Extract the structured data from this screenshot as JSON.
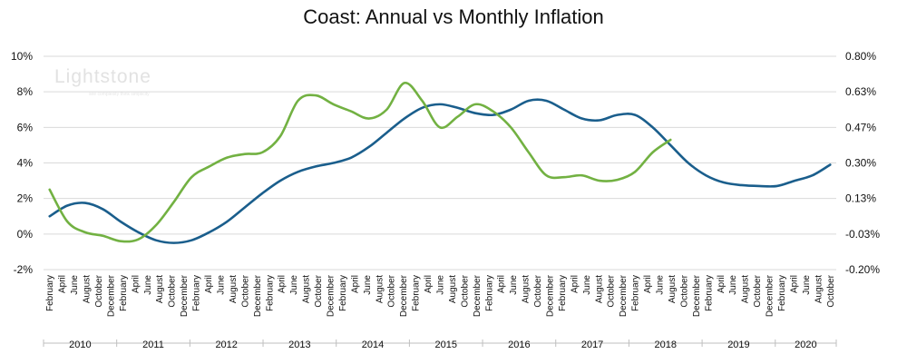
{
  "chart_data": {
    "type": "line",
    "title": "Coast: Annual vs Monthly Inflation",
    "xlabel": "",
    "ylabel": "",
    "y_left": {
      "ticks": [
        "10%",
        "8%",
        "6%",
        "4%",
        "2%",
        "0%",
        "-2%"
      ],
      "ylim": [
        -2,
        10
      ]
    },
    "y_right": {
      "ticks": [
        "0.80%",
        "0.63%",
        "0.47%",
        "0.30%",
        "0.13%",
        "-0.03%",
        "-0.20%"
      ],
      "ylim": [
        -0.2,
        0.8
      ]
    },
    "x_month_labels": [
      "February",
      "April",
      "June",
      "August",
      "October",
      "December",
      "February",
      "April",
      "June",
      "August",
      "October",
      "December",
      "February",
      "April",
      "June",
      "August",
      "October",
      "December",
      "February",
      "April",
      "June",
      "August",
      "October",
      "December",
      "February",
      "April",
      "June",
      "August",
      "October",
      "December",
      "February",
      "April",
      "June",
      "August",
      "October",
      "December",
      "February",
      "April",
      "June",
      "August",
      "October",
      "December",
      "February",
      "April",
      "June",
      "August",
      "October",
      "December",
      "February",
      "April",
      "June",
      "August",
      "October",
      "December",
      "February",
      "April",
      "June",
      "August",
      "October",
      "December",
      "February",
      "April",
      "June",
      "August",
      "October"
    ],
    "years": [
      "2010",
      "2011",
      "2012",
      "2013",
      "2014",
      "2015",
      "2016",
      "2017",
      "2018",
      "2019",
      "2020"
    ],
    "grid": true,
    "legend": "none",
    "series": [
      {
        "axis": "left",
        "color": "#1a5e8c",
        "points": [
          [
            0,
            1.0
          ],
          [
            1,
            1.6
          ],
          [
            2,
            1.75
          ],
          [
            3,
            1.4
          ],
          [
            4,
            0.7
          ],
          [
            5,
            0.1
          ],
          [
            6,
            -0.35
          ],
          [
            7,
            -0.5
          ],
          [
            8,
            -0.35
          ],
          [
            9,
            0.1
          ],
          [
            10,
            0.7
          ],
          [
            11,
            1.5
          ],
          [
            12,
            2.3
          ],
          [
            13,
            3.0
          ],
          [
            14,
            3.5
          ],
          [
            15,
            3.8
          ],
          [
            16,
            4.0
          ],
          [
            17,
            4.3
          ],
          [
            18,
            4.9
          ],
          [
            19,
            5.7
          ],
          [
            20,
            6.5
          ],
          [
            21,
            7.1
          ],
          [
            22,
            7.3
          ],
          [
            23,
            7.1
          ],
          [
            24,
            6.8
          ],
          [
            25,
            6.7
          ],
          [
            26,
            7.0
          ],
          [
            27,
            7.5
          ],
          [
            28,
            7.5
          ],
          [
            29,
            7.0
          ],
          [
            30,
            6.5
          ],
          [
            31,
            6.4
          ],
          [
            32,
            6.7
          ],
          [
            33,
            6.7
          ],
          [
            34,
            6.0
          ],
          [
            35,
            5.0
          ],
          [
            36,
            4.0
          ],
          [
            37,
            3.3
          ],
          [
            38,
            2.9
          ],
          [
            39,
            2.75
          ],
          [
            40,
            2.7
          ],
          [
            41,
            2.7
          ],
          [
            42,
            3.0
          ],
          [
            43,
            3.3
          ],
          [
            44,
            3.9
          ]
        ]
      },
      {
        "axis": "left",
        "color": "#72b142",
        "points": [
          [
            0,
            2.5
          ],
          [
            1,
            0.7
          ],
          [
            2,
            0.1
          ],
          [
            3,
            -0.1
          ],
          [
            4,
            -0.4
          ],
          [
            5,
            -0.3
          ],
          [
            6,
            0.5
          ],
          [
            7,
            1.8
          ],
          [
            8,
            3.2
          ],
          [
            9,
            3.8
          ],
          [
            10,
            4.3
          ],
          [
            11,
            4.5
          ],
          [
            12,
            4.6
          ],
          [
            13,
            5.5
          ],
          [
            14,
            7.5
          ],
          [
            15,
            7.8
          ],
          [
            16,
            7.3
          ],
          [
            17,
            6.9
          ],
          [
            18,
            6.5
          ],
          [
            19,
            7.0
          ],
          [
            20,
            8.5
          ],
          [
            21,
            7.5
          ],
          [
            22,
            6.0
          ],
          [
            23,
            6.6
          ],
          [
            24,
            7.3
          ],
          [
            25,
            6.9
          ],
          [
            26,
            6.0
          ],
          [
            27,
            4.6
          ],
          [
            28,
            3.3
          ],
          [
            29,
            3.2
          ],
          [
            30,
            3.3
          ],
          [
            31,
            3.0
          ],
          [
            32,
            3.05
          ],
          [
            33,
            3.5
          ],
          [
            34,
            4.6
          ],
          [
            35,
            5.3
          ]
        ]
      }
    ]
  },
  "watermark": {
    "logo_text": "Lightstone",
    "tagline": "see complexity think simplicity"
  }
}
